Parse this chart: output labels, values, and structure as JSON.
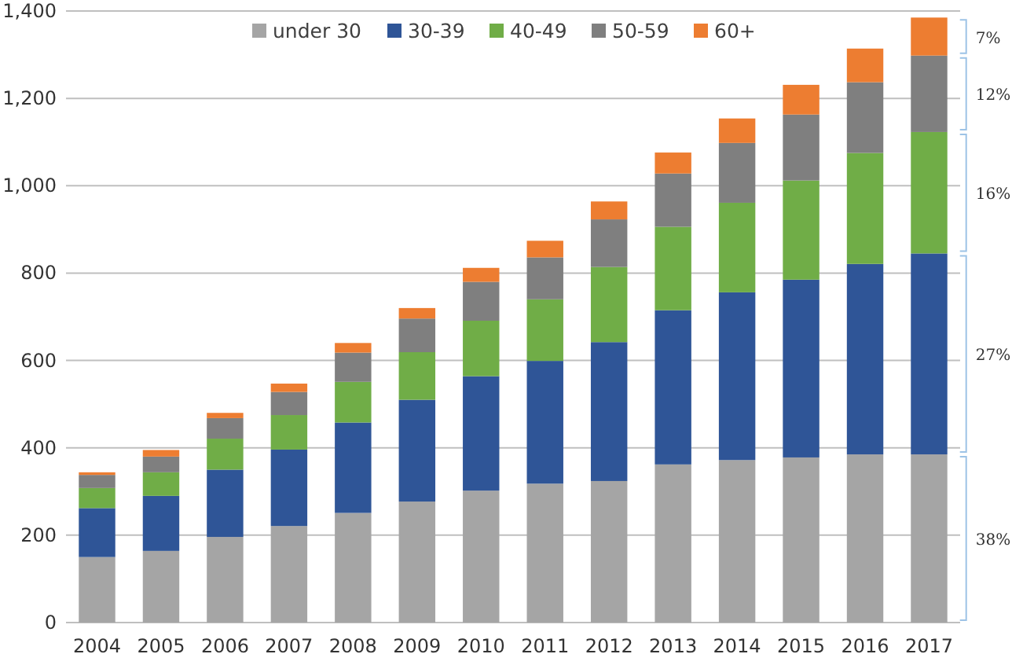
{
  "chart_data": {
    "type": "bar",
    "stacked": true,
    "categories": [
      "2004",
      "2005",
      "2006",
      "2007",
      "2008",
      "2009",
      "2010",
      "2011",
      "2012",
      "2013",
      "2014",
      "2015",
      "2016",
      "2017"
    ],
    "series": [
      {
        "name": "under 30",
        "color": "#a5a5a5",
        "values": [
          150,
          164,
          196,
          221,
          251,
          277,
          302,
          318,
          324,
          362,
          372,
          378,
          385,
          385
        ]
      },
      {
        "name": "30-39",
        "color": "#2f5597",
        "values": [
          112,
          126,
          154,
          175,
          207,
          233,
          262,
          281,
          318,
          353,
          384,
          407,
          436,
          460
        ]
      },
      {
        "name": "40-49",
        "color": "#70ad47",
        "values": [
          46,
          54,
          71,
          79,
          93,
          109,
          127,
          141,
          172,
          191,
          205,
          227,
          254,
          278
        ]
      },
      {
        "name": "50-59",
        "color": "#7f7f7f",
        "values": [
          30,
          36,
          47,
          53,
          67,
          77,
          89,
          96,
          109,
          122,
          137,
          151,
          162,
          175
        ]
      },
      {
        "name": "60+",
        "color": "#ed7d31",
        "values": [
          6,
          15,
          12,
          19,
          22,
          24,
          32,
          38,
          41,
          48,
          56,
          68,
          77,
          87
        ]
      }
    ],
    "ylim": [
      0,
      1400
    ],
    "yticks": [
      {
        "value": 0,
        "label": "0"
      },
      {
        "value": 200,
        "label": "200"
      },
      {
        "value": 400,
        "label": "400"
      },
      {
        "value": 600,
        "label": "600"
      },
      {
        "value": 800,
        "label": "800"
      },
      {
        "value": 1000,
        "label": "1,000"
      },
      {
        "value": 1200,
        "label": "1,200"
      },
      {
        "value": 1400,
        "label": "1,400"
      }
    ],
    "grid": "y",
    "legend": "top",
    "annotations": [
      "38%",
      "27%",
      "16%",
      "12%",
      "7%"
    ]
  }
}
